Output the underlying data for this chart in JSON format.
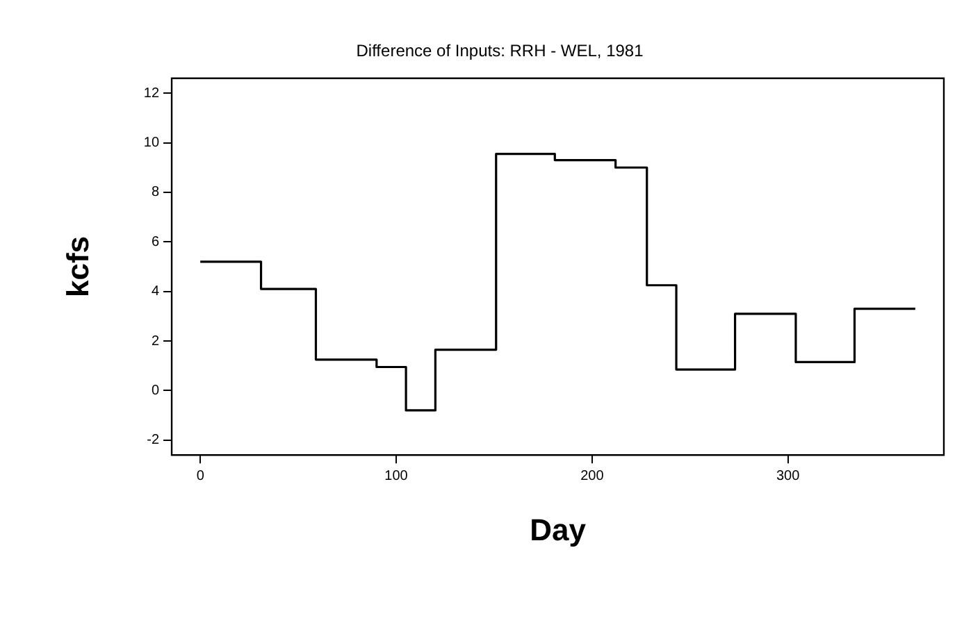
{
  "chart_data": {
    "type": "step",
    "title": "Difference of Inputs: RRH - WEL, 1981",
    "xlabel": "Day",
    "ylabel": "kcfs",
    "x": [
      0,
      31,
      59,
      90,
      105,
      120,
      151,
      181,
      212,
      228,
      243,
      273,
      304,
      334,
      365
    ],
    "series": [
      {
        "color": "#000000",
        "values": [
          5.2,
          4.1,
          1.25,
          0.95,
          -0.8,
          1.65,
          9.55,
          9.3,
          9.0,
          4.25,
          0.85,
          3.1,
          1.15,
          3.3,
          3.3
        ]
      }
    ],
    "xlim": [
      -14.6,
      379.6
    ],
    "xticks": [
      0,
      100,
      200,
      300
    ],
    "ylim": [
      -2.6,
      12.6
    ],
    "yticks": [
      -2,
      0,
      2,
      4,
      6,
      8,
      10,
      12
    ],
    "legend": false
  }
}
